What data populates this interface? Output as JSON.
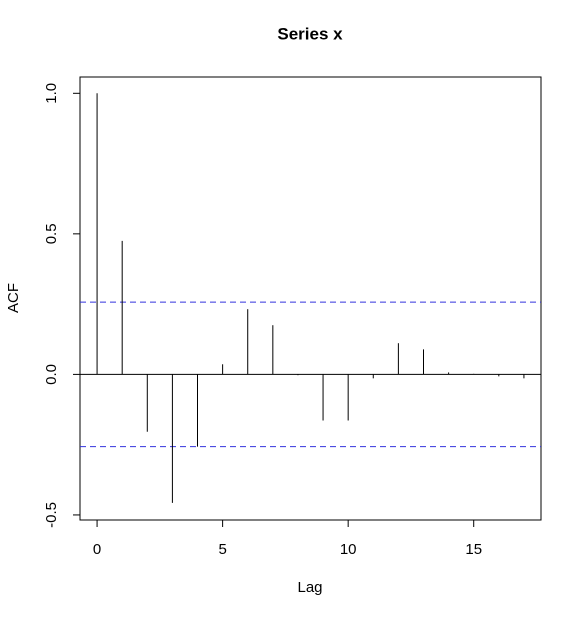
{
  "chart_data": {
    "type": "acf",
    "title": "Series  x",
    "xlabel": "Lag",
    "ylabel": "ACF",
    "x": [
      0,
      1,
      2,
      3,
      4,
      5,
      6,
      7,
      8,
      9,
      10,
      11,
      12,
      13,
      14,
      15,
      16,
      17
    ],
    "values": [
      1.0,
      0.475,
      -0.204,
      -0.457,
      -0.257,
      0.036,
      0.232,
      0.175,
      -0.003,
      -0.164,
      -0.164,
      -0.014,
      0.111,
      0.089,
      0.007,
      0.002,
      -0.007,
      -0.014
    ],
    "color": "#000000",
    "ci": [
      -0.257,
      0.257
    ],
    "ci_color": "#3333dd",
    "xlim": [
      -0.68,
      17.68
    ],
    "xticks": [
      0,
      5,
      10,
      15
    ],
    "ylim": [
      -0.518,
      1.058
    ],
    "yticks": [
      -0.5,
      {
        "value": 0,
        "label": "0.0"
      },
      0.5,
      {
        "value": 1,
        "label": "1.0"
      }
    ]
  }
}
